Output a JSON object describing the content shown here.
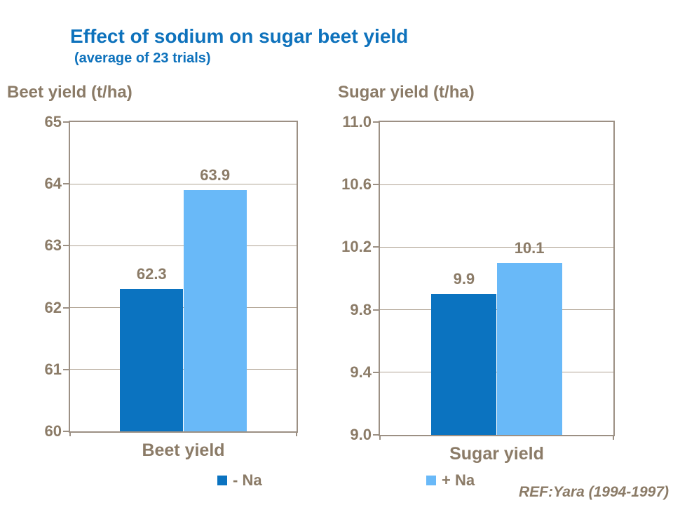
{
  "header": {
    "title": "Effect of sodium on sugar beet yield",
    "subtitle": "(average of 23 trials)",
    "title_color": "#0e72bc"
  },
  "footer": {
    "ref": "REF:Yara (1994-1997)"
  },
  "colors": {
    "minus_na_bar": "#0b73c0",
    "plus_na_bar": "#69b9f8",
    "text": "#8b7b67",
    "gridline": "#b0a393",
    "axis": "#9c9084"
  },
  "chart_data": [
    {
      "type": "bar",
      "title": "Beet yield (t/ha)",
      "category": "Beet yield",
      "ylabel": "Beet yield (t/ha)",
      "xlabel": "Beet yield",
      "ylim": [
        60,
        65
      ],
      "grid": true,
      "legend_position": "bottom",
      "yticks": [
        {
          "label": "60",
          "value": 60
        },
        {
          "label": "61",
          "value": 61
        },
        {
          "label": "62",
          "value": 62
        },
        {
          "label": "63",
          "value": 63
        },
        {
          "label": "64",
          "value": 64
        },
        {
          "label": "65",
          "value": 65
        }
      ],
      "series": [
        {
          "name": "- Na",
          "value": 62.3,
          "label": "62.3",
          "color": "#0b73c0"
        },
        {
          "name": "+ Na",
          "value": 63.9,
          "label": "63.9",
          "color": "#69b9f8"
        }
      ],
      "legend": {
        "label": "- Na",
        "color": "#0b73c0"
      }
    },
    {
      "type": "bar",
      "title": "Sugar yield (t/ha)",
      "category": "Sugar yield",
      "ylabel": "Sugar yield (t/ha)",
      "xlabel": "Sugar yield",
      "ylim": [
        9.0,
        11.0
      ],
      "grid": true,
      "legend_position": "bottom",
      "yticks": [
        {
          "label": "9.0",
          "value": 9.0
        },
        {
          "label": "9.4",
          "value": 9.4
        },
        {
          "label": "9.8",
          "value": 9.8
        },
        {
          "label": "10.2",
          "value": 10.2
        },
        {
          "label": "10.6",
          "value": 10.6
        },
        {
          "label": "11.0",
          "value": 11.0
        }
      ],
      "series": [
        {
          "name": "- Na",
          "value": 9.9,
          "label": "9.9",
          "color": "#0b73c0"
        },
        {
          "name": "+ Na",
          "value": 10.1,
          "label": "10.1",
          "color": "#69b9f8"
        }
      ],
      "legend": {
        "label": "+ Na",
        "color": "#69b9f8"
      }
    }
  ]
}
